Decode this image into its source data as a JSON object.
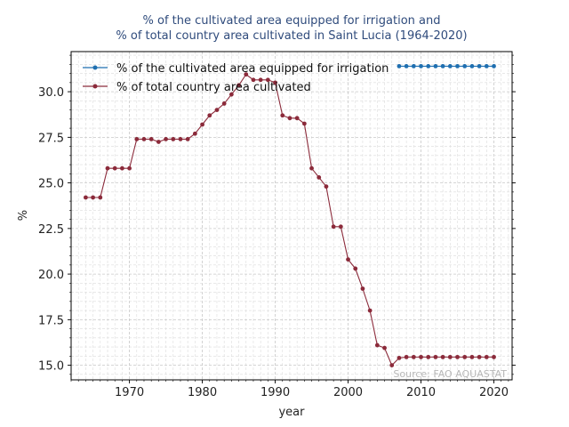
{
  "chart_data": {
    "type": "line",
    "title_lines": [
      "% of the cultivated area equipped for irrigation and",
      "% of total country area cultivated in Saint Lucia (1964-2020)"
    ],
    "xlabel": "year",
    "ylabel": "%",
    "xlim": [
      1962,
      2022.5
    ],
    "ylim": [
      14.2,
      32.2
    ],
    "x_ticks": [
      1970,
      1980,
      1990,
      2000,
      2010,
      2020
    ],
    "y_ticks": [
      15.0,
      17.5,
      20.0,
      22.5,
      25.0,
      27.5,
      30.0
    ],
    "grid": true,
    "legend_position": "top-left",
    "source": "Source: FAO AQUASTAT",
    "series": [
      {
        "name": "% of the cultivated area equipped for irrigation",
        "color": "#1f6fb0",
        "x": [
          2007,
          2008,
          2009,
          2010,
          2011,
          2012,
          2013,
          2014,
          2015,
          2016,
          2017,
          2018,
          2019,
          2020
        ],
        "y": [
          31.4,
          31.4,
          31.4,
          31.4,
          31.4,
          31.4,
          31.4,
          31.4,
          31.4,
          31.4,
          31.4,
          31.4,
          31.4,
          31.4
        ]
      },
      {
        "name": "% of total country area cultivated",
        "color": "#8b2a3a",
        "x": [
          1964,
          1965,
          1966,
          1967,
          1968,
          1969,
          1970,
          1971,
          1972,
          1973,
          1974,
          1975,
          1976,
          1977,
          1978,
          1979,
          1980,
          1981,
          1982,
          1983,
          1984,
          1985,
          1986,
          1987,
          1988,
          1989,
          1990,
          1991,
          1992,
          1993,
          1994,
          1995,
          1996,
          1997,
          1998,
          1999,
          2000,
          2001,
          2002,
          2003,
          2004,
          2005,
          2006,
          2007,
          2008,
          2009,
          2010,
          2011,
          2012,
          2013,
          2014,
          2015,
          2016,
          2017,
          2018,
          2019,
          2020
        ],
        "y": [
          24.2,
          24.2,
          24.2,
          25.8,
          25.8,
          25.8,
          25.8,
          27.4,
          27.4,
          27.4,
          27.25,
          27.4,
          27.4,
          27.4,
          27.4,
          27.7,
          28.2,
          28.7,
          29.0,
          29.35,
          29.85,
          30.35,
          30.95,
          30.65,
          30.65,
          30.65,
          30.5,
          28.7,
          28.55,
          28.55,
          28.25,
          25.8,
          25.3,
          24.8,
          22.6,
          22.6,
          20.8,
          20.3,
          19.2,
          18.0,
          16.1,
          15.95,
          15.0,
          15.4,
          15.45,
          15.45,
          15.45,
          15.45,
          15.45,
          15.45,
          15.45,
          15.45,
          15.45,
          15.45,
          15.45,
          15.45,
          15.45
        ]
      }
    ]
  }
}
